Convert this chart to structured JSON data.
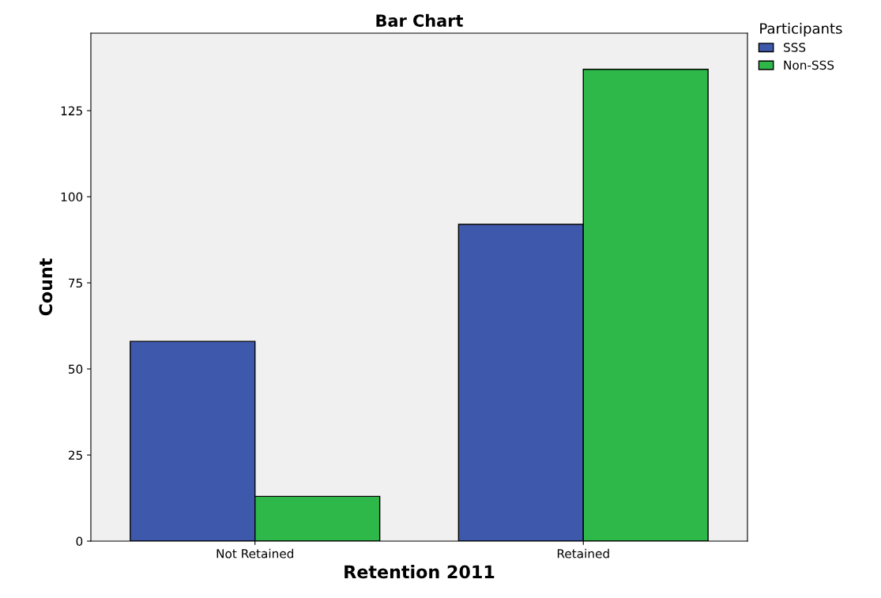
{
  "chart_data": {
    "type": "bar",
    "title": "Bar Chart",
    "xlabel": "Retention 2011",
    "ylabel": "Count",
    "legend_title": "Participants",
    "categories": [
      "Not Retained",
      "Retained"
    ],
    "series": [
      {
        "name": "SSS",
        "color": "#3e58ac",
        "values": [
          58,
          92
        ]
      },
      {
        "name": "Non-SSS",
        "color": "#2eb84a",
        "values": [
          13,
          137
        ]
      }
    ],
    "ylim": [
      0,
      147.5
    ],
    "yticks": [
      0,
      25,
      50,
      75,
      100,
      125
    ],
    "grid": false,
    "legend": "top right"
  }
}
